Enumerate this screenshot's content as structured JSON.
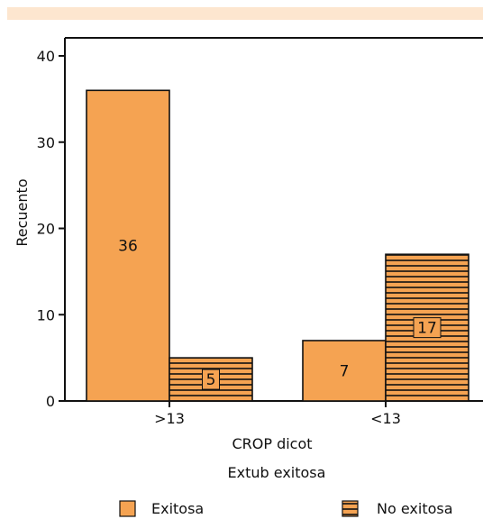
{
  "chart_data": {
    "type": "bar",
    "categories": [
      ">13",
      "<13"
    ],
    "series": [
      {
        "name": "Exitosa",
        "values": [
          36,
          7
        ]
      },
      {
        "name": "No exitosa",
        "values": [
          5,
          17
        ]
      }
    ],
    "data_labels": [
      [
        "36",
        "7"
      ],
      [
        "5",
        "17"
      ]
    ],
    "xlabel": "CROP dicot",
    "ylabel": "Recuento",
    "ylim": [
      0,
      42
    ],
    "yticks": [
      0,
      10,
      20,
      30,
      40
    ],
    "ytick_labels": [
      "0",
      "10",
      "20",
      "30",
      "40"
    ],
    "legend": {
      "title": "Extub exitosa",
      "placement": "bottom",
      "items": [
        "Exitosa",
        "No exitosa"
      ]
    },
    "grid": false,
    "colors": {
      "bar_fill": "#f5a352",
      "stroke": "#111111",
      "hatch": "#111111",
      "top_band": "#fde6cf"
    }
  }
}
